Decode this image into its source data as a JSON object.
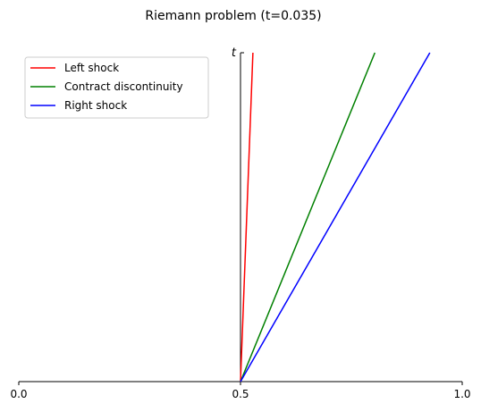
{
  "chart_data": {
    "type": "line",
    "title": "Riemann problem (t=0.035)",
    "xlabel": "",
    "ylabel": "t",
    "xlim": [
      0.0,
      1.0
    ],
    "ylim": [
      0.0,
      0.035
    ],
    "xticks": [
      "0.0",
      "0.5",
      "1.0"
    ],
    "grid": false,
    "legend_position": "top-left",
    "series": [
      {
        "name": "Left shock",
        "color": "#ff0000",
        "x": [
          0.5,
          0.528
        ],
        "y": [
          0.0,
          0.035
        ]
      },
      {
        "name": "Contract discontinuity",
        "color": "#008000",
        "x": [
          0.5,
          0.803
        ],
        "y": [
          0.0,
          0.035
        ]
      },
      {
        "name": "Right shock",
        "color": "#0000ff",
        "x": [
          0.5,
          0.927
        ],
        "y": [
          0.0,
          0.035
        ]
      }
    ]
  }
}
